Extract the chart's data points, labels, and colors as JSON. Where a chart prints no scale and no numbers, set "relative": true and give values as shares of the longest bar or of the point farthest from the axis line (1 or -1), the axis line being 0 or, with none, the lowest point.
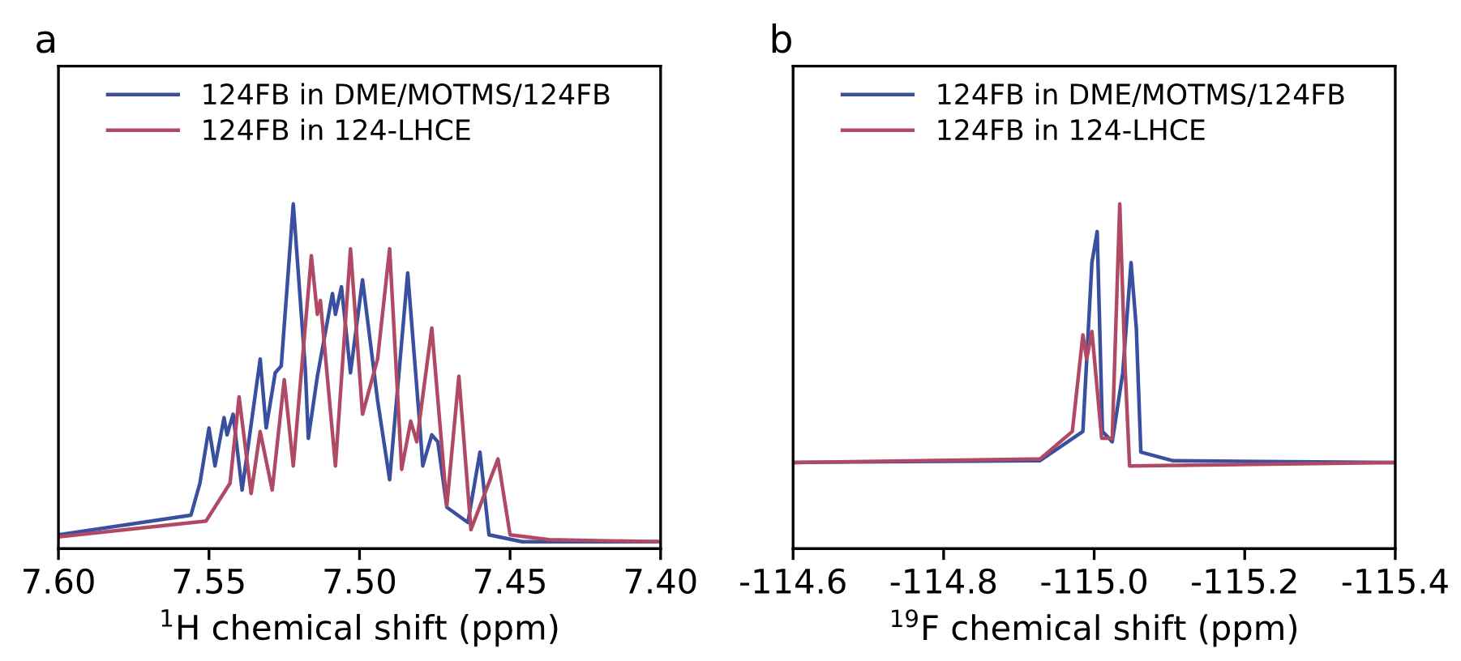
{
  "chart_data": [
    {
      "type": "line",
      "title": "a",
      "xlabel": "$^{1}$H chemical shift (ppm)",
      "relative": true,
      "xlim": [
        7.6,
        7.4
      ],
      "xticks": [
        {
          "value": 7.6,
          "label": "7.60"
        },
        {
          "value": 7.55,
          "label": "7.55"
        },
        {
          "value": 7.5,
          "label": "7.50"
        },
        {
          "value": 7.45,
          "label": "7.45"
        },
        {
          "value": 7.4,
          "label": "7.40"
        }
      ],
      "legend": "top",
      "tick_labels": "x",
      "series": [
        {
          "name": "124FB in DME/MOTMS/124FB",
          "color": "#3a4fa0",
          "x": [
            7.6,
            7.556,
            7.553,
            7.55,
            7.548,
            7.545,
            7.544,
            7.542,
            7.539,
            7.533,
            7.531,
            7.528,
            7.526,
            7.522,
            7.518,
            7.517,
            7.514,
            7.509,
            7.508,
            7.506,
            7.503,
            7.499,
            7.494,
            7.49,
            7.484,
            7.48,
            7.479,
            7.476,
            7.474,
            7.471,
            7.464,
            7.46,
            7.457,
            7.446,
            7.401
          ],
          "values": [
            0.04,
            0.097,
            0.19,
            0.35,
            0.24,
            0.38,
            0.33,
            0.39,
            0.17,
            0.55,
            0.35,
            0.51,
            0.53,
            1.0,
            0.52,
            0.32,
            0.5,
            0.74,
            0.68,
            0.76,
            0.51,
            0.78,
            0.43,
            0.2,
            0.8,
            0.36,
            0.24,
            0.33,
            0.31,
            0.12,
            0.076,
            0.28,
            0.04,
            0.02,
            0.02
          ]
        },
        {
          "name": "124FB in 124-LHCE",
          "color": "#b04a64",
          "x": [
            7.6,
            7.551,
            7.543,
            7.54,
            7.536,
            7.533,
            7.529,
            7.525,
            7.522,
            7.516,
            7.514,
            7.513,
            7.508,
            7.503,
            7.499,
            7.494,
            7.49,
            7.486,
            7.483,
            7.481,
            7.476,
            7.471,
            7.467,
            7.463,
            7.454,
            7.45,
            7.437,
            7.401
          ],
          "values": [
            0.034,
            0.08,
            0.19,
            0.44,
            0.16,
            0.34,
            0.17,
            0.49,
            0.24,
            0.85,
            0.68,
            0.72,
            0.24,
            0.87,
            0.39,
            0.55,
            0.87,
            0.23,
            0.37,
            0.31,
            0.64,
            0.125,
            0.5,
            0.055,
            0.26,
            0.04,
            0.026,
            0.02
          ]
        }
      ]
    },
    {
      "type": "line",
      "title": "b",
      "xlabel": "$^{19}$F chemical shift (ppm)",
      "relative": true,
      "xlim": [
        -114.6,
        -115.4
      ],
      "xticks": [
        {
          "value": -114.6,
          "label": "-114.6"
        },
        {
          "value": -114.8,
          "label": "-114.8"
        },
        {
          "value": -115.0,
          "label": "-115.0"
        },
        {
          "value": -115.2,
          "label": "-115.2"
        },
        {
          "value": -115.4,
          "label": "-115.4"
        }
      ],
      "legend": "top",
      "tick_labels": "x",
      "series": [
        {
          "name": "124FB in DME/MOTMS/124FB",
          "color": "#3a4fa0",
          "x": [
            -114.6,
            -114.928,
            -114.985,
            -114.997,
            -115.004,
            -115.011,
            -115.024,
            -115.038,
            -115.049,
            -115.056,
            -115.062,
            -115.105,
            -115.4
          ],
          "values": [
            0.25,
            0.255,
            0.34,
            0.83,
            0.92,
            0.34,
            0.31,
            0.51,
            0.83,
            0.64,
            0.28,
            0.255,
            0.25
          ]
        },
        {
          "name": "124FB in 124-LHCE",
          "color": "#b04a64",
          "x": [
            -114.6,
            -114.928,
            -114.971,
            -114.985,
            -114.99,
            -114.997,
            -115.01,
            -115.024,
            -115.034,
            -115.041,
            -115.047,
            -115.4
          ],
          "values": [
            0.25,
            0.26,
            0.34,
            0.62,
            0.55,
            0.63,
            0.32,
            0.32,
            1.0,
            0.53,
            0.24,
            0.25
          ]
        }
      ]
    }
  ]
}
